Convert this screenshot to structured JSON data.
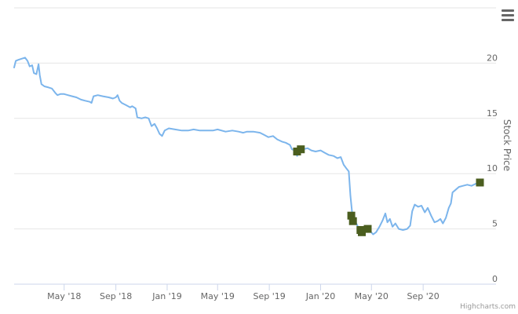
{
  "chart_data": {
    "type": "line",
    "title": "",
    "xlabel": "",
    "ylabel": "Stock Price",
    "x_range": [
      "2018-01-02",
      "2021-01-15"
    ],
    "ylim": [
      0,
      25
    ],
    "y_ticks": [
      0,
      5,
      10,
      15,
      20
    ],
    "x_ticks": [
      {
        "date": "2018-05-01",
        "label": "May '18"
      },
      {
        "date": "2018-09-01",
        "label": "Sep '18"
      },
      {
        "date": "2019-01-01",
        "label": "Jan '19"
      },
      {
        "date": "2019-05-01",
        "label": "May '19"
      },
      {
        "date": "2019-09-01",
        "label": "Sep '19"
      },
      {
        "date": "2020-01-01",
        "label": "Jan '20"
      },
      {
        "date": "2020-05-01",
        "label": "May '20"
      },
      {
        "date": "2020-09-01",
        "label": "Sep '20"
      }
    ],
    "grid": true,
    "legend": "none",
    "series": [
      {
        "color": "#7cb5ec",
        "points": [
          [
            "2018-01-02",
            19.6
          ],
          [
            "2018-01-06",
            20.2
          ],
          [
            "2018-01-12",
            20.3
          ],
          [
            "2018-01-20",
            20.4
          ],
          [
            "2018-01-28",
            20.5
          ],
          [
            "2018-02-03",
            20.2
          ],
          [
            "2018-02-08",
            19.7
          ],
          [
            "2018-02-14",
            19.8
          ],
          [
            "2018-02-18",
            19.1
          ],
          [
            "2018-02-24",
            19.0
          ],
          [
            "2018-03-01",
            19.9
          ],
          [
            "2018-03-04",
            18.9
          ],
          [
            "2018-03-08",
            18.1
          ],
          [
            "2018-03-15",
            17.9
          ],
          [
            "2018-03-25",
            17.8
          ],
          [
            "2018-04-02",
            17.7
          ],
          [
            "2018-04-10",
            17.3
          ],
          [
            "2018-04-15",
            17.1
          ],
          [
            "2018-04-22",
            17.2
          ],
          [
            "2018-05-01",
            17.2
          ],
          [
            "2018-05-10",
            17.1
          ],
          [
            "2018-05-20",
            17.0
          ],
          [
            "2018-05-30",
            16.9
          ],
          [
            "2018-06-10",
            16.7
          ],
          [
            "2018-06-20",
            16.6
          ],
          [
            "2018-07-01",
            16.5
          ],
          [
            "2018-07-05",
            16.4
          ],
          [
            "2018-07-10",
            17.0
          ],
          [
            "2018-07-20",
            17.1
          ],
          [
            "2018-08-01",
            17.0
          ],
          [
            "2018-08-15",
            16.9
          ],
          [
            "2018-08-25",
            16.8
          ],
          [
            "2018-09-01",
            16.9
          ],
          [
            "2018-09-05",
            17.1
          ],
          [
            "2018-09-10",
            16.6
          ],
          [
            "2018-09-15",
            16.4
          ],
          [
            "2018-09-25",
            16.2
          ],
          [
            "2018-10-05",
            16.0
          ],
          [
            "2018-10-10",
            16.1
          ],
          [
            "2018-10-18",
            15.9
          ],
          [
            "2018-10-22",
            15.1
          ],
          [
            "2018-11-01",
            15.0
          ],
          [
            "2018-11-10",
            15.1
          ],
          [
            "2018-11-18",
            15.0
          ],
          [
            "2018-11-25",
            14.3
          ],
          [
            "2018-12-02",
            14.5
          ],
          [
            "2018-12-08",
            14.1
          ],
          [
            "2018-12-14",
            13.6
          ],
          [
            "2018-12-20",
            13.4
          ],
          [
            "2018-12-26",
            13.9
          ],
          [
            "2019-01-05",
            14.1
          ],
          [
            "2019-01-20",
            14.0
          ],
          [
            "2019-02-05",
            13.9
          ],
          [
            "2019-02-20",
            13.9
          ],
          [
            "2019-03-05",
            14.0
          ],
          [
            "2019-03-20",
            13.9
          ],
          [
            "2019-04-05",
            13.9
          ],
          [
            "2019-04-20",
            13.9
          ],
          [
            "2019-05-01",
            14.0
          ],
          [
            "2019-05-20",
            13.8
          ],
          [
            "2019-06-05",
            13.9
          ],
          [
            "2019-06-20",
            13.8
          ],
          [
            "2019-07-01",
            13.7
          ],
          [
            "2019-07-10",
            13.8
          ],
          [
            "2019-07-25",
            13.8
          ],
          [
            "2019-08-10",
            13.7
          ],
          [
            "2019-08-20",
            13.5
          ],
          [
            "2019-08-30",
            13.3
          ],
          [
            "2019-09-10",
            13.4
          ],
          [
            "2019-09-20",
            13.1
          ],
          [
            "2019-10-01",
            12.9
          ],
          [
            "2019-10-10",
            12.8
          ],
          [
            "2019-10-20",
            12.6
          ],
          [
            "2019-10-25",
            12.2
          ],
          [
            "2019-11-01",
            12.1
          ],
          [
            "2019-11-06",
            11.6
          ],
          [
            "2019-11-12",
            12.0
          ],
          [
            "2019-11-20",
            12.2
          ],
          [
            "2019-12-01",
            12.3
          ],
          [
            "2019-12-10",
            12.1
          ],
          [
            "2019-12-20",
            12.0
          ],
          [
            "2020-01-01",
            12.1
          ],
          [
            "2020-01-10",
            11.9
          ],
          [
            "2020-01-20",
            11.7
          ],
          [
            "2020-02-01",
            11.6
          ],
          [
            "2020-02-10",
            11.4
          ],
          [
            "2020-02-18",
            11.5
          ],
          [
            "2020-02-25",
            10.8
          ],
          [
            "2020-03-02",
            10.5
          ],
          [
            "2020-03-08",
            10.2
          ],
          [
            "2020-03-12",
            8.0
          ],
          [
            "2020-03-16",
            6.5
          ],
          [
            "2020-03-20",
            5.8
          ],
          [
            "2020-03-26",
            5.5
          ],
          [
            "2020-04-01",
            5.0
          ],
          [
            "2020-04-06",
            4.6
          ],
          [
            "2020-04-12",
            4.9
          ],
          [
            "2020-04-20",
            5.1
          ],
          [
            "2020-04-28",
            4.8
          ],
          [
            "2020-05-05",
            4.5
          ],
          [
            "2020-05-12",
            4.7
          ],
          [
            "2020-05-20",
            5.2
          ],
          [
            "2020-05-28",
            5.8
          ],
          [
            "2020-06-03",
            6.4
          ],
          [
            "2020-06-08",
            5.6
          ],
          [
            "2020-06-14",
            5.9
          ],
          [
            "2020-06-20",
            5.2
          ],
          [
            "2020-06-27",
            5.5
          ],
          [
            "2020-07-05",
            5.0
          ],
          [
            "2020-07-15",
            4.9
          ],
          [
            "2020-07-25",
            5.0
          ],
          [
            "2020-08-01",
            5.3
          ],
          [
            "2020-08-06",
            6.6
          ],
          [
            "2020-08-12",
            7.2
          ],
          [
            "2020-08-20",
            7.0
          ],
          [
            "2020-08-28",
            7.1
          ],
          [
            "2020-09-05",
            6.5
          ],
          [
            "2020-09-12",
            6.9
          ],
          [
            "2020-09-20",
            6.2
          ],
          [
            "2020-09-28",
            5.6
          ],
          [
            "2020-10-05",
            5.7
          ],
          [
            "2020-10-12",
            5.9
          ],
          [
            "2020-10-18",
            5.5
          ],
          [
            "2020-10-25",
            6.0
          ],
          [
            "2020-11-01",
            6.9
          ],
          [
            "2020-11-06",
            7.3
          ],
          [
            "2020-11-10",
            8.3
          ],
          [
            "2020-11-16",
            8.5
          ],
          [
            "2020-11-25",
            8.8
          ],
          [
            "2020-12-05",
            8.9
          ],
          [
            "2020-12-15",
            9.0
          ],
          [
            "2020-12-25",
            8.9
          ],
          [
            "2021-01-05",
            9.1
          ],
          [
            "2021-01-12",
            9.0
          ]
        ]
      }
    ],
    "markers": {
      "color": "#4b5e1f",
      "shape": "square",
      "points": [
        [
          "2019-11-06",
          12.0
        ],
        [
          "2019-11-15",
          12.2
        ],
        [
          "2020-03-14",
          6.2
        ],
        [
          "2020-03-18",
          5.7
        ],
        [
          "2020-04-05",
          4.9
        ],
        [
          "2020-04-08",
          4.7
        ],
        [
          "2020-04-22",
          5.0
        ],
        [
          "2021-01-14",
          9.2
        ]
      ]
    },
    "credits": "Highcharts.com"
  },
  "icons": {
    "menu": "hamburger-menu-icon"
  }
}
